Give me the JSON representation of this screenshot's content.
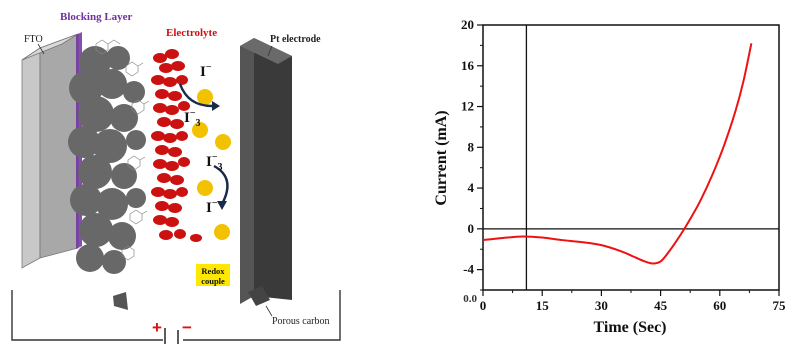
{
  "diagram": {
    "labels": {
      "fto": "FTO",
      "blocking_layer": "Blocking Layer",
      "electrolyte": "Electrolyte",
      "pt_electrode": "Pt electrode",
      "redox_line1": "Redox",
      "redox_line2": "couple",
      "porous_carbon": "Porous carbon",
      "plus": "+",
      "minus": "−"
    },
    "ions": {
      "iodide_top": "I",
      "iodide_top_sup": "−",
      "triiodide_top": "I",
      "triiodide_top_sup": "−",
      "triiodide_top_sub": "3",
      "triiodide_mid": "I",
      "triiodide_mid_sup": "−",
      "triiodide_mid_sub": "3",
      "iodide_bottom": "I",
      "iodide_bottom_sup": "−"
    },
    "colors": {
      "fto": "#aaaaaa",
      "particles": "#6a6a6a",
      "electrolyte": "#cc1111",
      "redox": "#f2c200",
      "redox_label_bg": "#ffe800",
      "pt_electrode": "#3a3a3a",
      "blocking_layer": "#7030a0",
      "plus": "#dd1111",
      "minus": "#dd1111"
    }
  },
  "chart_data": {
    "type": "line",
    "title": "",
    "xlabel": "Time (Sec)",
    "ylabel": "Current (mA)",
    "xlim": [
      0,
      75
    ],
    "ylim": [
      -6,
      20
    ],
    "x_ticks": [
      0,
      15,
      30,
      45,
      60,
      75
    ],
    "x_tick_labels": [
      "0",
      "15",
      "30",
      "45",
      "60",
      "75"
    ],
    "y_ticks": [
      -4,
      0,
      4,
      8,
      12,
      16,
      20
    ],
    "y_tick_labels": [
      "-4",
      "0",
      "4",
      "8",
      "12",
      "16",
      "20"
    ],
    "corner_label": "0.0",
    "grid": false,
    "reference_lines": {
      "horizontal_y": 0,
      "vertical_x": 11
    },
    "line_color": "#ee1111",
    "series": [
      {
        "x": [
          0,
          5,
          10,
          15,
          20,
          25,
          30,
          35,
          38,
          41,
          43,
          45,
          47,
          49,
          51,
          53,
          55,
          58,
          61,
          64,
          66,
          68
        ],
        "values": [
          -1.1,
          -0.9,
          -0.75,
          -0.85,
          -1.1,
          -1.3,
          -1.6,
          -2.2,
          -2.7,
          -3.2,
          -3.4,
          -3.2,
          -2.3,
          -1.2,
          0.0,
          1.3,
          2.7,
          5.2,
          8.1,
          11.6,
          14.5,
          18.2
        ]
      }
    ]
  }
}
